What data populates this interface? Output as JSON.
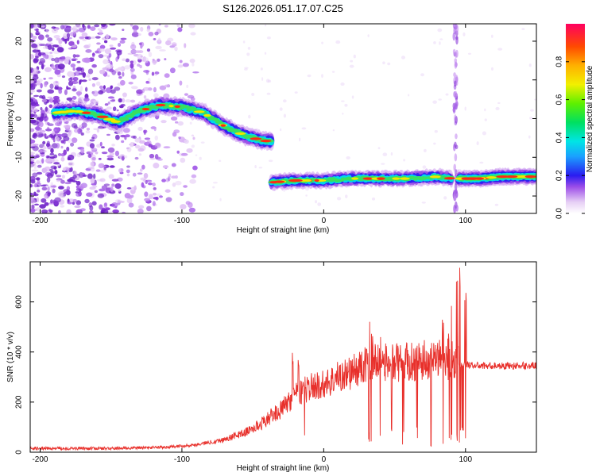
{
  "title": "S126.2026.051.17.07.C25",
  "chart_data": [
    {
      "type": "heatmap",
      "xlabel": "Height of straight line (km)",
      "ylabel": "Frequency (Hz)",
      "xlim": [
        -207,
        150
      ],
      "ylim": [
        -24.5,
        24.5
      ],
      "xticks": [
        -200,
        -100,
        0,
        100
      ],
      "yticks": [
        -20,
        -10,
        0,
        10,
        20
      ],
      "colorbar": {
        "label": "Normalized spectral amplitude",
        "range": [
          0,
          1
        ],
        "ticks": [
          "0.0",
          "0.2",
          "0.4",
          "0.6",
          "0.8"
        ],
        "tick_values": [
          0.0,
          0.2,
          0.4,
          0.6,
          0.8
        ]
      },
      "ridge_segments": [
        {
          "name": "tilted-ridge",
          "x": [
            -190,
            -175,
            -160,
            -145,
            -130,
            -115,
            -100,
            -85,
            -70,
            -55,
            -45,
            -37
          ],
          "y": [
            1.5,
            2.0,
            1.0,
            -1.0,
            2.0,
            3.5,
            3.0,
            1.5,
            -2.0,
            -4.5,
            -5.5,
            -6.0
          ]
        },
        {
          "name": "flat-ridge-a",
          "x": [
            -37,
            -20,
            0,
            20,
            40,
            60,
            80,
            90
          ],
          "y": [
            -16.5,
            -16.0,
            -16.0,
            -15.5,
            -15.5,
            -15.5,
            -15.0,
            -15.5
          ]
        },
        {
          "name": "flat-ridge-b",
          "x": [
            95,
            110,
            125,
            140,
            150
          ],
          "y": [
            -15.5,
            -15.5,
            -15.0,
            -15.0,
            -15.0
          ]
        }
      ],
      "vertical_streak_x": 93,
      "noise_region_x": [
        -207,
        -100
      ]
    },
    {
      "type": "line",
      "xlabel": "Height of straight line (km)",
      "ylabel": "SNR (10 * v/v)",
      "xlim": [
        -207,
        150
      ],
      "ylim": [
        0,
        760
      ],
      "xticks": [
        -200,
        -100,
        0,
        100
      ],
      "yticks": [
        0,
        200,
        400,
        600
      ],
      "color": "#e8302b",
      "series": [
        {
          "name": "SNR trend",
          "x": [
            -207,
            -150,
            -110,
            -90,
            -70,
            -55,
            -45,
            -38,
            -30,
            -25,
            -20,
            -10,
            0,
            10,
            20,
            28,
            35,
            45,
            60,
            75,
            85,
            93,
            97,
            100,
            110,
            130,
            150
          ],
          "y": [
            15,
            15,
            20,
            30,
            50,
            80,
            110,
            140,
            170,
            200,
            225,
            260,
            270,
            300,
            320,
            340,
            360,
            355,
            360,
            370,
            370,
            360,
            350,
            350,
            345,
            345,
            345
          ]
        },
        {
          "name": "SNR spikes",
          "x": [
            -22,
            -18,
            -14,
            30,
            32,
            34,
            40,
            48,
            56,
            66,
            76,
            84,
            88,
            90,
            94,
            96,
            98,
            100
          ],
          "y": [
            410,
            390,
            300,
            450,
            560,
            520,
            500,
            440,
            420,
            430,
            420,
            540,
            480,
            620,
            700,
            740,
            680,
            650
          ]
        }
      ]
    }
  ]
}
